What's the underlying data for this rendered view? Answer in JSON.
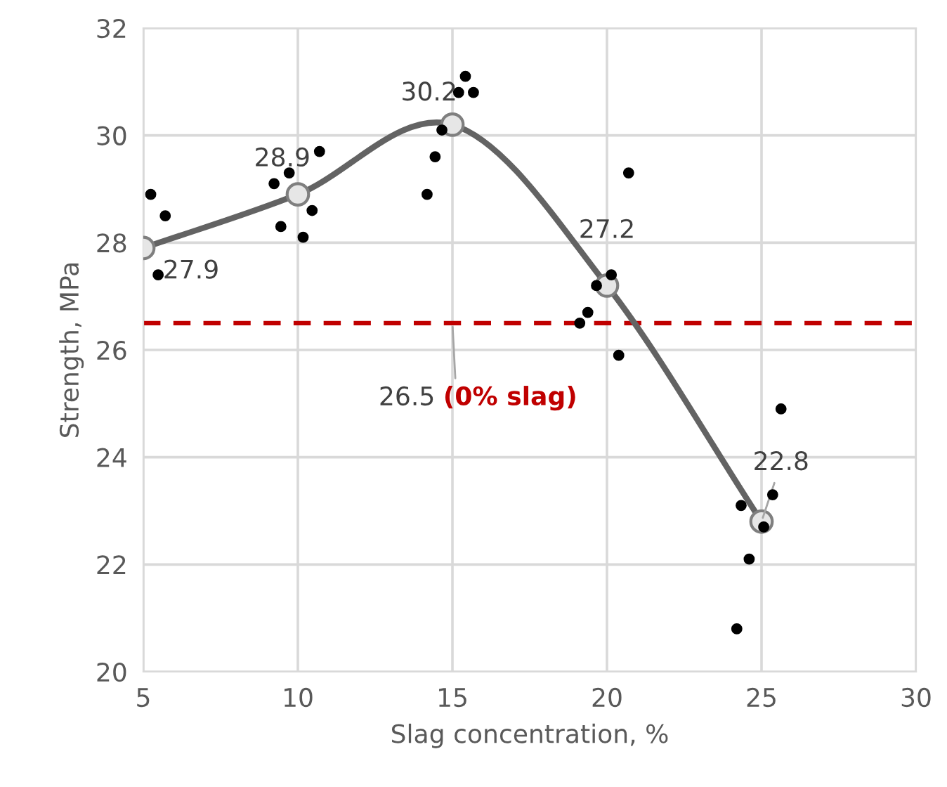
{
  "chart_data": {
    "type": "scatter",
    "xlabel": "Slag concentration, %",
    "ylabel": "Strength, MPa",
    "xlim": [
      5,
      30
    ],
    "xticks": [
      5,
      10,
      15,
      20,
      25,
      30
    ],
    "ylim": [
      20,
      32
    ],
    "yticks": [
      20,
      22,
      24,
      26,
      28,
      30,
      32
    ],
    "grid": true,
    "legend": false,
    "series": [
      {
        "color": "#000000",
        "marker": "circle",
        "x": [
          5.24,
          5.71,
          5.48,
          9.23,
          9.72,
          10.7,
          10.46,
          9.45,
          10.17,
          14.18,
          14.44,
          14.66,
          15.42,
          15.2,
          15.68,
          20.14,
          19.66,
          19.38,
          19.12,
          20.38,
          20.7,
          25.63,
          25.36,
          24.34,
          25.07,
          24.6,
          24.2
        ],
        "values": [
          28.9,
          28.5,
          27.4,
          29.1,
          29.3,
          29.7,
          28.6,
          28.3,
          28.1,
          28.9,
          29.6,
          30.1,
          31.1,
          30.8,
          30.8,
          27.4,
          27.2,
          26.7,
          26.5,
          25.9,
          29.3,
          24.9,
          23.3,
          23.1,
          22.7,
          22.1,
          20.8
        ]
      },
      {
        "type": "line",
        "color": "#636363",
        "marker": "circle",
        "line_style": "solid",
        "data_labels": true,
        "x": [
          5,
          10,
          15,
          20,
          25
        ],
        "values": [
          27.9,
          28.9,
          30.2,
          27.2,
          22.8
        ]
      }
    ],
    "ref_lines": [
      {
        "axis": "y",
        "value": 26.5,
        "label": "26.5 (0% slag)",
        "color": "#c00000",
        "line_style": "dashed"
      }
    ]
  }
}
